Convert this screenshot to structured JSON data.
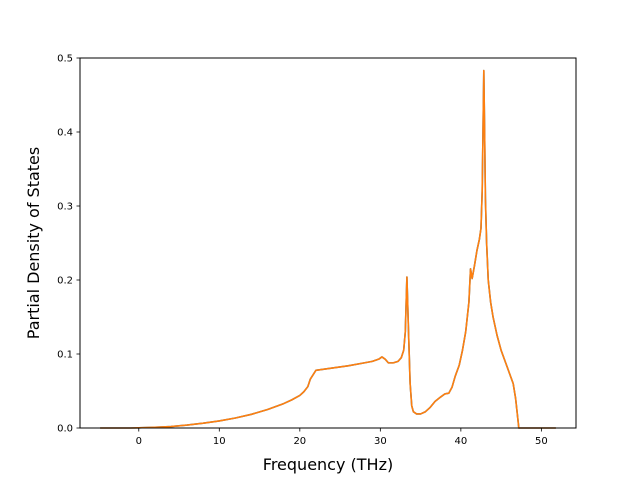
{
  "chart_data": {
    "type": "line",
    "title": "",
    "xlabel": "Frequency (THz)",
    "ylabel": "Partial Density of States",
    "xlim": [
      -7.3,
      54.3
    ],
    "ylim": [
      0,
      0.5
    ],
    "xticks": [
      0,
      10,
      20,
      30,
      40,
      50
    ],
    "yticks": [
      0.0,
      0.1,
      0.2,
      0.3,
      0.4,
      0.5
    ],
    "xtick_labels": [
      "0",
      "10",
      "20",
      "30",
      "40",
      "50"
    ],
    "ytick_labels": [
      "0.0",
      "0.1",
      "0.2",
      "0.3",
      "0.4",
      "0.5"
    ],
    "grid": false,
    "legend": "none",
    "series": [
      {
        "color": "#1f77b4",
        "x": [
          -4.8,
          -1,
          0,
          2,
          4,
          6,
          8,
          10,
          12,
          14,
          16,
          18,
          19,
          20,
          20.5,
          21,
          21.3,
          22,
          24,
          26,
          28,
          29,
          29.8,
          30.2,
          30.6,
          31,
          31.6,
          32.2,
          32.6,
          32.9,
          33.1,
          33.3,
          33.5,
          33.7,
          33.9,
          34.1,
          34.5,
          35,
          35.6,
          36.2,
          36.8,
          37.5,
          38,
          38.5,
          38.9,
          39.3,
          39.8,
          40.2,
          40.6,
          40.8,
          41.0,
          41.2,
          41.4,
          41.7,
          42.0,
          42.3,
          42.5,
          42.65,
          42.75,
          42.85,
          42.95,
          43.05,
          43.2,
          43.4,
          43.7,
          44.0,
          44.5,
          45.0,
          45.5,
          46.0,
          46.5,
          46.8,
          47.0,
          47.2,
          48,
          50,
          51.8
        ],
        "y": [
          0,
          0,
          0.0003,
          0.001,
          0.002,
          0.004,
          0.0065,
          0.0095,
          0.0135,
          0.0185,
          0.025,
          0.033,
          0.038,
          0.044,
          0.049,
          0.056,
          0.066,
          0.078,
          0.081,
          0.084,
          0.088,
          0.09,
          0.093,
          0.096,
          0.093,
          0.088,
          0.088,
          0.09,
          0.095,
          0.105,
          0.13,
          0.204,
          0.13,
          0.06,
          0.03,
          0.022,
          0.019,
          0.019,
          0.022,
          0.028,
          0.036,
          0.042,
          0.046,
          0.047,
          0.055,
          0.07,
          0.085,
          0.105,
          0.13,
          0.15,
          0.17,
          0.215,
          0.202,
          0.22,
          0.24,
          0.255,
          0.27,
          0.32,
          0.4,
          0.483,
          0.4,
          0.31,
          0.25,
          0.2,
          0.17,
          0.15,
          0.125,
          0.105,
          0.09,
          0.075,
          0.06,
          0.04,
          0.02,
          0.0,
          0.0,
          0.0,
          0.0
        ]
      },
      {
        "color": "#ff7f0e",
        "x": [
          -4.8,
          -1,
          0,
          2,
          4,
          6,
          8,
          10,
          12,
          14,
          16,
          18,
          19,
          20,
          20.5,
          21,
          21.3,
          22,
          24,
          26,
          28,
          29,
          29.8,
          30.2,
          30.6,
          31,
          31.6,
          32.2,
          32.6,
          32.9,
          33.1,
          33.3,
          33.5,
          33.7,
          33.9,
          34.1,
          34.5,
          35,
          35.6,
          36.2,
          36.8,
          37.5,
          38,
          38.5,
          38.9,
          39.3,
          39.8,
          40.2,
          40.6,
          40.8,
          41.0,
          41.2,
          41.4,
          41.7,
          42.0,
          42.3,
          42.5,
          42.65,
          42.75,
          42.85,
          42.95,
          43.05,
          43.2,
          43.4,
          43.7,
          44.0,
          44.5,
          45.0,
          45.5,
          46.0,
          46.5,
          46.8,
          47.0,
          47.2,
          48,
          50,
          51.8
        ],
        "y": [
          0,
          0,
          0.0003,
          0.001,
          0.002,
          0.004,
          0.0065,
          0.0095,
          0.0135,
          0.0185,
          0.025,
          0.033,
          0.038,
          0.044,
          0.049,
          0.056,
          0.066,
          0.078,
          0.081,
          0.084,
          0.088,
          0.09,
          0.093,
          0.096,
          0.093,
          0.088,
          0.088,
          0.09,
          0.095,
          0.105,
          0.13,
          0.204,
          0.13,
          0.06,
          0.03,
          0.022,
          0.019,
          0.019,
          0.022,
          0.028,
          0.036,
          0.042,
          0.046,
          0.047,
          0.055,
          0.07,
          0.085,
          0.105,
          0.13,
          0.15,
          0.17,
          0.215,
          0.202,
          0.22,
          0.24,
          0.255,
          0.27,
          0.32,
          0.4,
          0.483,
          0.4,
          0.31,
          0.25,
          0.2,
          0.17,
          0.15,
          0.125,
          0.105,
          0.09,
          0.075,
          0.06,
          0.04,
          0.02,
          0.0,
          0.0,
          0.0,
          0.0
        ]
      }
    ]
  }
}
